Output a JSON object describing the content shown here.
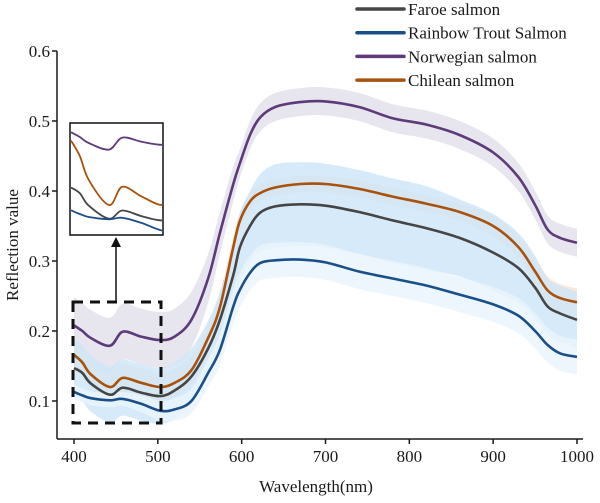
{
  "chart_data": {
    "type": "line",
    "title": "",
    "xlabel": "Wavelength(nm)",
    "ylabel": "Reflection value",
    "xlim": [
      400,
      1000
    ],
    "ylim": [
      0.047,
      0.6
    ],
    "xticks": [
      400,
      500,
      600,
      700,
      800,
      900,
      1000
    ],
    "xtick_labels": [
      "400",
      "500",
      "600",
      "700",
      "800",
      "900",
      "1000"
    ],
    "yticks": [
      0.1,
      0.2,
      0.3,
      0.4,
      0.5,
      0.6
    ],
    "ytick_labels": [
      "0.1",
      "0.2",
      "0.3",
      "0.4",
      "0.5",
      "0.6"
    ],
    "grid": false,
    "legend_position": "top-right",
    "x": [
      400,
      410,
      420,
      443,
      458,
      480,
      503,
      520,
      540,
      560,
      574,
      590,
      598,
      610,
      622,
      640,
      670,
      700,
      740,
      780,
      820,
      860,
      900,
      930,
      950,
      965,
      980,
      1000
    ],
    "series": [
      {
        "name": "Faroe salmon",
        "color": "#454545",
        "band_color": "#cfe6f8",
        "values": [
          0.147,
          0.14,
          0.125,
          0.109,
          0.119,
          0.112,
          0.107,
          0.115,
          0.135,
          0.175,
          0.216,
          0.28,
          0.32,
          0.35,
          0.369,
          0.378,
          0.381,
          0.379,
          0.37,
          0.358,
          0.347,
          0.333,
          0.312,
          0.29,
          0.262,
          0.235,
          0.225,
          0.216
        ],
        "band": [
          0.04,
          0.04,
          0.04,
          0.04,
          0.04,
          0.04,
          0.04,
          0.04,
          0.04,
          0.04,
          0.04,
          0.045,
          0.05,
          0.05,
          0.055,
          0.06,
          0.06,
          0.06,
          0.06,
          0.06,
          0.06,
          0.055,
          0.055,
          0.05,
          0.045,
          0.04,
          0.04,
          0.04
        ]
      },
      {
        "name": "Rainbow Trout Salmon",
        "color": "#1a4f8a",
        "band_color": "#eaf4fc",
        "values": [
          0.113,
          0.108,
          0.104,
          0.101,
          0.103,
          0.096,
          0.086,
          0.088,
          0.1,
          0.14,
          0.173,
          0.235,
          0.259,
          0.283,
          0.297,
          0.301,
          0.302,
          0.298,
          0.285,
          0.275,
          0.265,
          0.252,
          0.238,
          0.222,
          0.2,
          0.18,
          0.168,
          0.163
        ],
        "band": [
          0.01,
          0.01,
          0.01,
          0.01,
          0.01,
          0.012,
          0.014,
          0.016,
          0.018,
          0.02,
          0.022,
          0.025,
          0.025,
          0.025,
          0.025,
          0.025,
          0.025,
          0.025,
          0.025,
          0.025,
          0.025,
          0.025,
          0.025,
          0.025,
          0.025,
          0.025,
          0.025,
          0.025
        ]
      },
      {
        "name": "Norwegian salmon",
        "color": "#5e3a7a",
        "band_color": "#e3e0ea",
        "values": [
          0.208,
          0.2,
          0.19,
          0.179,
          0.199,
          0.192,
          0.187,
          0.192,
          0.216,
          0.275,
          0.34,
          0.41,
          0.44,
          0.48,
          0.505,
          0.52,
          0.527,
          0.528,
          0.52,
          0.504,
          0.495,
          0.48,
          0.455,
          0.42,
          0.38,
          0.345,
          0.333,
          0.326
        ],
        "band": [
          0.04,
          0.04,
          0.04,
          0.04,
          0.04,
          0.04,
          0.04,
          0.04,
          0.04,
          0.035,
          0.03,
          0.025,
          0.02,
          0.02,
          0.02,
          0.02,
          0.02,
          0.02,
          0.02,
          0.02,
          0.02,
          0.02,
          0.02,
          0.02,
          0.02,
          0.02,
          0.02,
          0.02
        ]
      },
      {
        "name": "Chilean salmon",
        "color": "#a8520e",
        "band_color": "#fbe4d0",
        "values": [
          0.166,
          0.155,
          0.138,
          0.12,
          0.133,
          0.126,
          0.12,
          0.126,
          0.144,
          0.19,
          0.234,
          0.32,
          0.358,
          0.385,
          0.397,
          0.405,
          0.41,
          0.41,
          0.403,
          0.392,
          0.382,
          0.37,
          0.35,
          0.32,
          0.285,
          0.258,
          0.247,
          0.241
        ],
        "band": [
          0.02,
          0.02,
          0.02,
          0.02,
          0.02,
          0.02,
          0.02,
          0.02,
          0.02,
          0.02,
          0.02,
          0.015,
          0.012,
          0.012,
          0.012,
          0.012,
          0.012,
          0.012,
          0.012,
          0.012,
          0.012,
          0.012,
          0.015,
          0.015,
          0.02,
          0.02,
          0.02,
          0.02
        ]
      }
    ],
    "annotations": [
      {
        "type": "dashed-box",
        "x_range": [
          400,
          503
        ],
        "y_range": [
          0.075,
          0.248
        ],
        "label": "zoom region"
      },
      {
        "type": "inset",
        "description": "magnified view of 400-503 nm region",
        "connected_by": "arrow"
      }
    ]
  }
}
